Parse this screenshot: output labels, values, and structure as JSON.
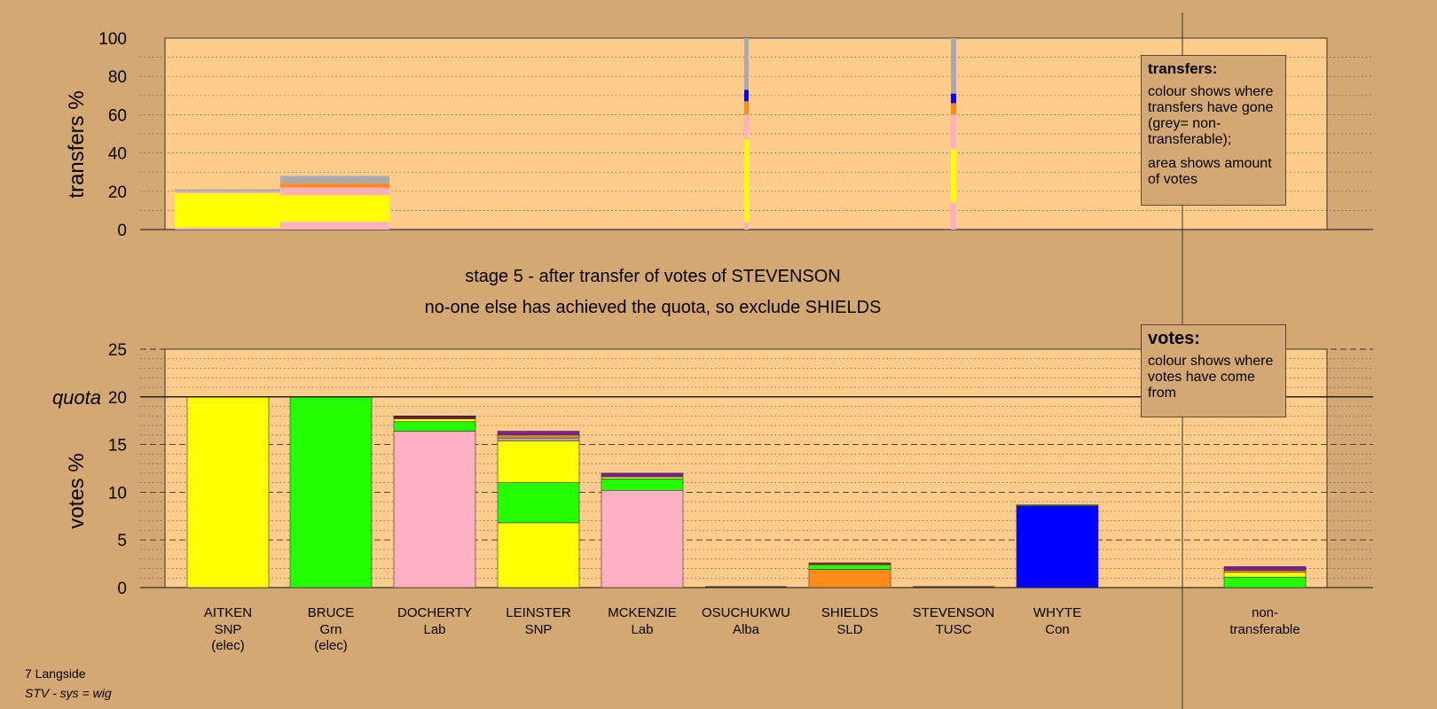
{
  "stage_title": "stage 5 - after transfer of votes of STEVENSON",
  "stage_subtitle": "no-one else has achieved the quota, so exclude SHIELDS",
  "ward": "7 Langside",
  "system": "STV - sys = wig",
  "legend_transfers": {
    "title": "transfers:",
    "line1": "colour shows where transfers have gone (grey= non-transferable);",
    "line2": "area shows amount of votes"
  },
  "legend_votes": {
    "title": "votes:",
    "line1": "colour shows where votes have come from"
  },
  "colors": {
    "AITKEN": "#ffff00",
    "BRUCE": "#22ff00",
    "DOCHERTY": "#ffb0c0",
    "LEINSTER": "#ffff00",
    "MCKENZIE": "#ffb0c0",
    "OSUCHUKWU": "#7a1fa0",
    "SHIELDS": "#ff8c1a",
    "STEVENSON": "#aa1122",
    "WHYTE": "#0000ff",
    "nontransferable": "#aaaaaa",
    "plot_bg": "#ffcc8c",
    "outer_bg": "#d4a872"
  },
  "chart_data": [
    {
      "type": "bar",
      "chart": "transfers",
      "ylabel": "transfers %",
      "ylim": [
        0,
        100
      ],
      "yticks": [
        0,
        20,
        40,
        60,
        80,
        100
      ],
      "transfers": [
        {
          "from": "stage1",
          "segments": [
            {
              "to": "DOCHERTY",
              "value": 1
            },
            {
              "to": "LEINSTER",
              "value": 18
            },
            {
              "to": "MCKENZIE",
              "value": 1
            },
            {
              "to": "nontransferable",
              "value": 1
            }
          ]
        },
        {
          "from": "stage2",
          "segments": [
            {
              "to": "DOCHERTY",
              "value": 4
            },
            {
              "to": "LEINSTER",
              "value": 14
            },
            {
              "to": "MCKENZIE",
              "value": 4
            },
            {
              "to": "SHIELDS",
              "value": 2
            },
            {
              "to": "nontransferable",
              "value": 4
            }
          ]
        },
        {
          "from": "OSUCHUKWU",
          "segments": [
            {
              "to": "DOCHERTY",
              "value": 4
            },
            {
              "to": "LEINSTER",
              "value": 43
            },
            {
              "to": "MCKENZIE",
              "value": 13
            },
            {
              "to": "SHIELDS",
              "value": 7
            },
            {
              "to": "WHYTE",
              "value": 6
            },
            {
              "to": "nontransferable",
              "value": 27
            }
          ]
        },
        {
          "from": "STEVENSON",
          "segments": [
            {
              "to": "DOCHERTY",
              "value": 14
            },
            {
              "to": "LEINSTER",
              "value": 28
            },
            {
              "to": "MCKENZIE",
              "value": 18
            },
            {
              "to": "SHIELDS",
              "value": 6
            },
            {
              "to": "WHYTE",
              "value": 5
            },
            {
              "to": "nontransferable",
              "value": 29
            }
          ]
        }
      ]
    },
    {
      "type": "bar",
      "chart": "votes",
      "ylabel": "votes %",
      "ylim": [
        0,
        25
      ],
      "yticks": [
        0,
        5,
        10,
        15,
        20,
        25
      ],
      "quota": 20,
      "quota_label": "quota",
      "categories": [
        {
          "name": "AITKEN",
          "party": "SNP",
          "note": "(elec)",
          "segments": [
            {
              "from": "AITKEN",
              "value": 20
            }
          ]
        },
        {
          "name": "BRUCE",
          "party": "Grn",
          "note": "(elec)",
          "segments": [
            {
              "from": "BRUCE",
              "value": 20
            }
          ]
        },
        {
          "name": "DOCHERTY",
          "party": "Lab",
          "note": "",
          "segments": [
            {
              "from": "DOCHERTY",
              "value": 16.4
            },
            {
              "from": "BRUCE",
              "value": 1.0
            },
            {
              "from": "LEINSTER",
              "value": 0.3
            },
            {
              "from": "STEVENSON",
              "value": 0.2
            },
            {
              "from": "WHYTE",
              "value": 0.1
            }
          ]
        },
        {
          "name": "LEINSTER",
          "party": "SNP",
          "note": "",
          "segments": [
            {
              "from": "LEINSTER",
              "value": 6.8
            },
            {
              "from": "BRUCE",
              "value": 4.2
            },
            {
              "from": "AITKEN",
              "value": 4.4
            },
            {
              "from": "nontransferable",
              "value": 0.3
            },
            {
              "from": "SHIELDS",
              "value": 0.3
            },
            {
              "from": "OSUCHUKWU",
              "value": 0.4
            }
          ]
        },
        {
          "name": "MCKENZIE",
          "party": "Lab",
          "note": "",
          "segments": [
            {
              "from": "MCKENZIE",
              "value": 10.2
            },
            {
              "from": "BRUCE",
              "value": 1.2
            },
            {
              "from": "LEINSTER",
              "value": 0.2
            },
            {
              "from": "OSUCHUKWU",
              "value": 0.4
            }
          ]
        },
        {
          "name": "OSUCHUKWU",
          "party": "Alba",
          "note": "",
          "segments": []
        },
        {
          "name": "SHIELDS",
          "party": "SLD",
          "note": "",
          "segments": [
            {
              "from": "SHIELDS",
              "value": 1.9
            },
            {
              "from": "BRUCE",
              "value": 0.5
            },
            {
              "from": "STEVENSON",
              "value": 0.2
            }
          ]
        },
        {
          "name": "STEVENSON",
          "party": "TUSC",
          "note": "",
          "segments": []
        },
        {
          "name": "WHYTE",
          "party": "Con",
          "note": "",
          "segments": [
            {
              "from": "WHYTE",
              "value": 8.6
            },
            {
              "from": "AITKEN",
              "value": 0.1
            }
          ]
        },
        {
          "name": "non-",
          "party": "transferable",
          "note": "",
          "segments": [
            {
              "from": "BRUCE",
              "value": 1.1
            },
            {
              "from": "LEINSTER",
              "value": 0.5
            },
            {
              "from": "SHIELDS",
              "value": 0.2
            },
            {
              "from": "OSUCHUKWU",
              "value": 0.4
            }
          ]
        }
      ]
    }
  ]
}
